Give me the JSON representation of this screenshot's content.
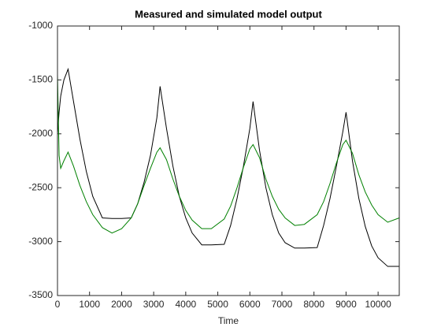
{
  "chart_data": {
    "type": "line",
    "title": "Measured and simulated model output",
    "xlabel": "Time",
    "x": [
      0,
      50,
      100,
      200,
      330,
      500,
      700,
      900,
      1100,
      1400,
      1700,
      2000,
      2300,
      2500,
      2700,
      2900,
      3100,
      3200,
      3400,
      3600,
      3800,
      4000,
      4200,
      4500,
      4800,
      5200,
      5400,
      5600,
      5800,
      6000,
      6100,
      6300,
      6500,
      6700,
      6900,
      7100,
      7400,
      7700,
      8100,
      8300,
      8500,
      8700,
      8900,
      9000,
      9200,
      9400,
      9600,
      9800,
      10000,
      10300,
      10660
    ],
    "series": [
      {
        "color": "#000000",
        "values": [
          -2000,
          -1800,
          -1650,
          -1500,
          -1400,
          -1700,
          -2050,
          -2350,
          -2580,
          -2780,
          -2785,
          -2785,
          -2780,
          -2650,
          -2450,
          -2200,
          -1850,
          -1560,
          -1950,
          -2300,
          -2580,
          -2780,
          -2920,
          -3030,
          -3030,
          -3025,
          -2850,
          -2600,
          -2300,
          -1950,
          -1700,
          -2150,
          -2500,
          -2750,
          -2920,
          -3010,
          -3060,
          -3060,
          -3055,
          -2850,
          -2600,
          -2300,
          -1980,
          -1800,
          -2250,
          -2600,
          -2860,
          -3040,
          -3150,
          -3230,
          -3230
        ]
      },
      {
        "color": "#008000",
        "values": [
          -1450,
          -2200,
          -2320,
          -2250,
          -2170,
          -2300,
          -2480,
          -2630,
          -2750,
          -2870,
          -2920,
          -2880,
          -2780,
          -2650,
          -2480,
          -2320,
          -2170,
          -2130,
          -2240,
          -2420,
          -2580,
          -2710,
          -2800,
          -2880,
          -2880,
          -2790,
          -2670,
          -2500,
          -2310,
          -2140,
          -2100,
          -2220,
          -2420,
          -2580,
          -2700,
          -2780,
          -2850,
          -2840,
          -2750,
          -2630,
          -2460,
          -2270,
          -2100,
          -2060,
          -2180,
          -2380,
          -2540,
          -2660,
          -2750,
          -2820,
          -2780
        ]
      }
    ],
    "xlim": [
      0,
      10660
    ],
    "xticks": [
      0,
      1000,
      2000,
      3000,
      4000,
      5000,
      6000,
      7000,
      8000,
      9000,
      10000
    ],
    "ylim": [
      -3500,
      -1000
    ],
    "yticks": [
      -3500,
      -3000,
      -2500,
      -2000,
      -1500,
      -1000
    ],
    "grid": false
  }
}
